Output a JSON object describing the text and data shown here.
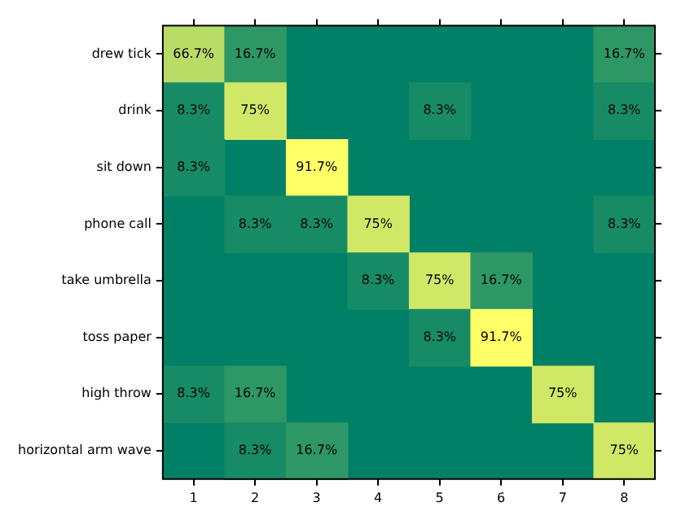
{
  "chart_data": {
    "type": "heatmap",
    "categories": [
      "1",
      "2",
      "3",
      "4",
      "5",
      "6",
      "7",
      "8"
    ],
    "y_categories": [
      "drew tick",
      "drink",
      "sit down",
      "phone call",
      "take umbrella",
      "toss paper",
      "high throw",
      "horizontal arm wave"
    ],
    "cells": [
      [
        66.7,
        16.7,
        null,
        null,
        null,
        null,
        null,
        16.7
      ],
      [
        8.3,
        75,
        null,
        null,
        8.3,
        null,
        null,
        8.3
      ],
      [
        8.3,
        null,
        91.7,
        null,
        null,
        null,
        null,
        null
      ],
      [
        null,
        8.3,
        8.3,
        75,
        null,
        null,
        null,
        8.3
      ],
      [
        null,
        null,
        null,
        8.3,
        75,
        16.7,
        null,
        null
      ],
      [
        null,
        null,
        null,
        null,
        8.3,
        91.7,
        null,
        null
      ],
      [
        8.3,
        16.7,
        null,
        null,
        null,
        null,
        75,
        null
      ],
      [
        null,
        8.3,
        16.7,
        null,
        null,
        null,
        null,
        75
      ]
    ],
    "cell_labels": [
      [
        "66.7%",
        "16.7%",
        null,
        null,
        null,
        null,
        null,
        "16.7%"
      ],
      [
        "8.3%",
        "75%",
        null,
        null,
        "8.3%",
        null,
        null,
        "8.3%"
      ],
      [
        "8.3%",
        null,
        "91.7%",
        null,
        null,
        null,
        null,
        null
      ],
      [
        null,
        "8.3%",
        "8.3%",
        "75%",
        null,
        null,
        null,
        "8.3%"
      ],
      [
        null,
        null,
        null,
        "8.3%",
        "75%",
        "16.7%",
        null,
        null
      ],
      [
        null,
        null,
        null,
        null,
        "8.3%",
        "91.7%",
        null,
        null
      ],
      [
        "8.3%",
        "16.7%",
        null,
        null,
        null,
        null,
        "75%",
        null
      ],
      [
        null,
        "8.3%",
        "16.7%",
        null,
        null,
        null,
        null,
        "75%"
      ]
    ]
  }
}
